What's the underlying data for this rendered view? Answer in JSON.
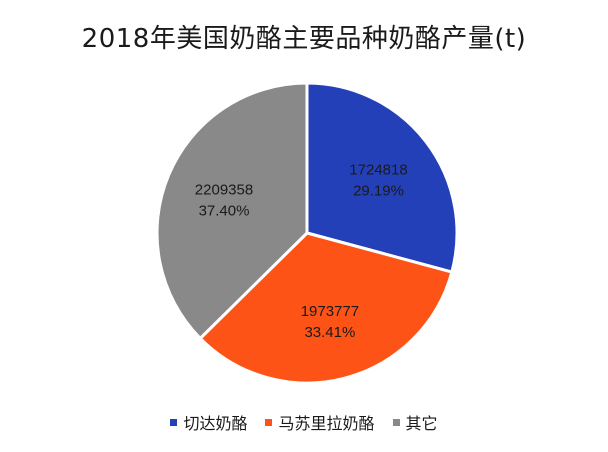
{
  "chart_data": {
    "type": "pie",
    "title": "2018年美国奶酪主要品种奶酪产量(t)",
    "categories": [
      "切达奶酪",
      "马苏里拉奶酪",
      "其它"
    ],
    "values": [
      1724818,
      1973777,
      2209358
    ],
    "value_labels": [
      "1724818",
      "1973777",
      "2209358"
    ],
    "percent_labels": [
      "29.19%",
      "33.41%",
      "37.40%"
    ],
    "colors": [
      "#2440b8",
      "#fd5317",
      "#898989"
    ],
    "legend_position": "bottom",
    "start_angle": "12 o'clock",
    "direction": "clockwise"
  }
}
